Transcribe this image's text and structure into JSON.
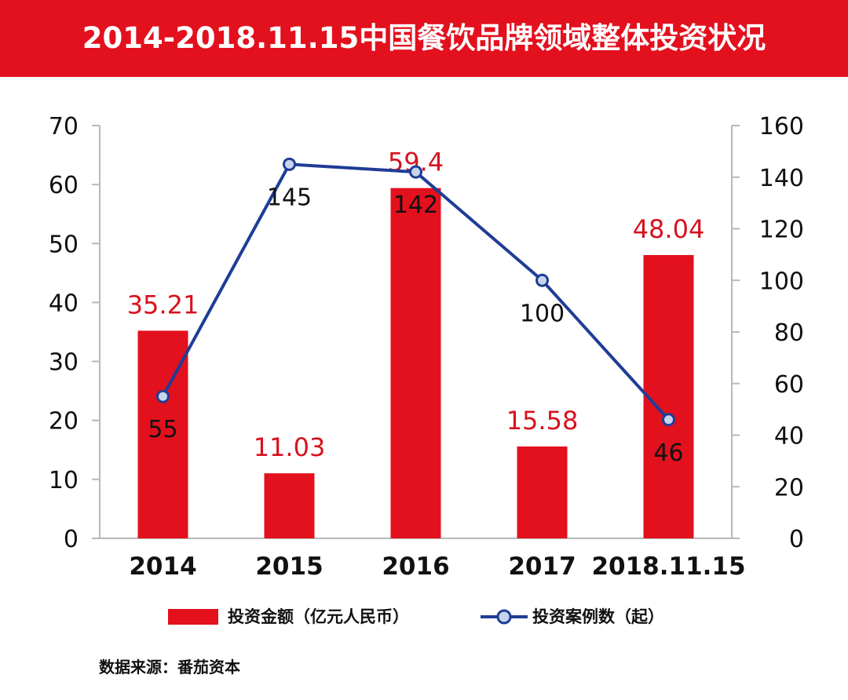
{
  "title": "2014-2018.11.15中国餐饮品牌领域整体投资状况",
  "source": "数据来源：番茄资本",
  "colors": {
    "banner": "#e3101e",
    "bar": "#e3101e",
    "bar_label": "#d7121f",
    "line": "#1f3d96",
    "marker_fill": "#c8d4ec",
    "axis": "#b8b8b8",
    "text": "#111111"
  },
  "chart_data": {
    "type": "bar",
    "categories": [
      "2014",
      "2015",
      "2016",
      "2017",
      "2018.11.15"
    ],
    "series": [
      {
        "name": "投资金额（亿元人民币）",
        "type": "bar",
        "axis": "left",
        "values": [
          35.21,
          11.03,
          59.4,
          15.58,
          48.04
        ],
        "labels": [
          "35.21",
          "11.03",
          "59.4",
          "15.58",
          "48.04"
        ]
      },
      {
        "name": "投资案例数（起）",
        "type": "line",
        "axis": "right",
        "values": [
          55,
          145,
          142,
          100,
          46
        ],
        "labels": [
          "55",
          "145",
          "142",
          "100",
          "46"
        ]
      }
    ],
    "y_left": {
      "ylim": [
        0,
        70
      ],
      "ticks": [
        "0",
        "10",
        "20",
        "30",
        "40",
        "50",
        "60",
        "70"
      ]
    },
    "y_right": {
      "ylim": [
        0,
        160
      ],
      "ticks": [
        "0",
        "20",
        "40",
        "60",
        "80",
        "100",
        "120",
        "140",
        "160"
      ]
    },
    "legend_position": "bottom",
    "grid": false
  }
}
